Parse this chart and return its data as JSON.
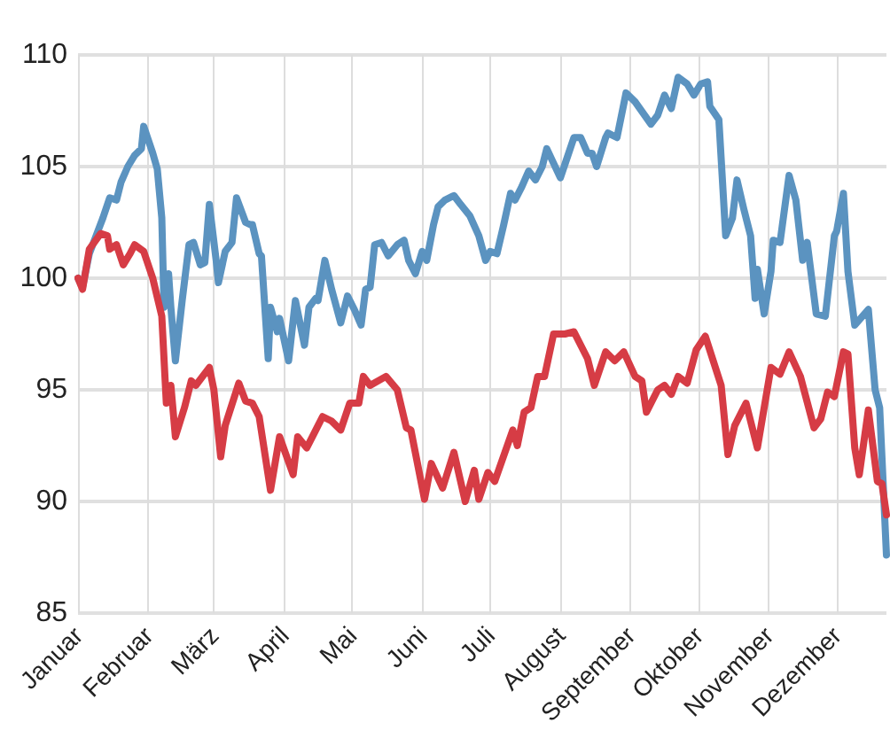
{
  "chart_data": {
    "type": "line",
    "xlim": [
      "--01-01",
      "--12-23"
    ],
    "ylim": [
      85,
      110
    ],
    "xticks": [
      {
        "value": "--01-01",
        "label": "Januar"
      },
      {
        "value": "--02-01",
        "label": "Februar"
      },
      {
        "value": "--03-01",
        "label": "März"
      },
      {
        "value": "--04-01",
        "label": "April"
      },
      {
        "value": "--05-01",
        "label": "Mai"
      },
      {
        "value": "--06-01",
        "label": "Juni"
      },
      {
        "value": "--07-01",
        "label": "Juli"
      },
      {
        "value": "--08-01",
        "label": "August"
      },
      {
        "value": "--09-01",
        "label": "September"
      },
      {
        "value": "--10-01",
        "label": "Oktober"
      },
      {
        "value": "--11-01",
        "label": "November"
      },
      {
        "value": "--12-01",
        "label": "Dezember"
      }
    ],
    "yticks": [
      85,
      90,
      95,
      100,
      105,
      110
    ],
    "grid": true,
    "marker": "none",
    "line_style": "solid",
    "series": [
      {
        "color": "#5b93c0",
        "x": [
          "--01-01",
          "--01-03",
          "--01-06",
          "--01-09",
          "--01-12",
          "--01-15",
          "--01-18",
          "--01-20",
          "--01-23",
          "--01-26",
          "--01-29",
          "--01-30",
          "--02-03",
          "--02-05",
          "--02-07",
          "--02-08",
          "--02-10",
          "--02-11",
          "--02-13",
          "--02-16",
          "--02-19",
          "--02-21",
          "--02-24",
          "--02-26",
          "--02-28",
          "--03-02",
          "--03-03",
          "--03-06",
          "--03-09",
          "--03-11",
          "--03-15",
          "--03-17",
          "--03-18",
          "--03-21",
          "--03-22",
          "--03-25",
          "--03-26",
          "--03-29",
          "--03-30",
          "--04-03",
          "--04-06",
          "--04-10",
          "--04-12",
          "--04-15",
          "--04-16",
          "--04-19",
          "--04-22",
          "--04-26",
          "--04-29",
          "--05-02",
          "--05-05",
          "--05-07",
          "--05-09",
          "--05-11",
          "--05-14",
          "--05-17",
          "--05-21",
          "--05-24",
          "--05-26",
          "--05-29",
          "--06-01",
          "--06-03",
          "--06-06",
          "--06-08",
          "--06-11",
          "--06-15",
          "--06-18",
          "--06-22",
          "--06-26",
          "--06-29",
          "--07-01",
          "--07-04",
          "--07-07",
          "--07-10",
          "--07-12",
          "--07-15",
          "--07-18",
          "--07-21",
          "--07-24",
          "--07-26",
          "--08-01",
          "--08-05",
          "--08-07",
          "--08-10",
          "--08-13",
          "--08-15",
          "--08-17",
          "--08-21",
          "--08-22",
          "--08-26",
          "--08-30",
          "--09-03",
          "--09-10",
          "--09-13",
          "--09-16",
          "--09-19",
          "--09-22",
          "--09-26",
          "--09-29",
          "--10-02",
          "--10-05",
          "--10-06",
          "--10-10",
          "--10-13",
          "--10-16",
          "--10-18",
          "--10-21",
          "--10-24",
          "--10-26",
          "--10-27",
          "--10-30",
          "--11-02",
          "--11-03",
          "--11-06",
          "--11-10",
          "--11-13",
          "--11-16",
          "--11-18",
          "--11-22",
          "--11-26",
          "--11-30",
          "--12-01",
          "--12-04",
          "--12-06",
          "--12-09",
          "--12-15",
          "--12-18",
          "--12-20",
          "--12-23"
        ],
        "values": [
          100.0,
          99.6,
          101.1,
          101.9,
          102.7,
          103.6,
          103.5,
          104.3,
          105.0,
          105.5,
          105.8,
          106.8,
          105.6,
          104.9,
          102.7,
          98.7,
          100.2,
          98.7,
          96.3,
          99.0,
          101.5,
          101.6,
          100.6,
          100.7,
          103.3,
          100.8,
          99.8,
          101.2,
          101.6,
          103.6,
          102.5,
          102.4,
          102.4,
          101.1,
          101.0,
          96.4,
          98.7,
          97.6,
          98.2,
          96.3,
          99.0,
          97.0,
          98.7,
          99.1,
          99.0,
          100.8,
          99.5,
          98.0,
          99.2,
          98.6,
          97.9,
          99.5,
          99.6,
          101.5,
          101.6,
          101.0,
          101.5,
          101.7,
          100.8,
          100.2,
          101.2,
          100.8,
          102.4,
          103.2,
          103.5,
          103.7,
          103.3,
          102.8,
          101.9,
          100.8,
          101.2,
          101.1,
          102.4,
          103.8,
          103.5,
          104.1,
          104.8,
          104.4,
          105.0,
          105.8,
          104.5,
          105.7,
          106.3,
          106.3,
          105.6,
          105.6,
          105.0,
          106.3,
          106.5,
          106.3,
          108.3,
          107.9,
          106.9,
          107.3,
          108.2,
          107.6,
          109.0,
          108.7,
          108.2,
          108.7,
          108.8,
          107.7,
          107.1,
          101.9,
          102.7,
          104.4,
          103.1,
          101.9,
          99.1,
          100.4,
          98.4,
          100.3,
          101.7,
          101.6,
          104.6,
          103.5,
          100.8,
          101.6,
          98.4,
          98.3,
          101.9,
          102.1,
          103.8,
          100.3,
          97.9,
          98.6,
          95.0,
          94.2,
          87.6
        ]
      },
      {
        "color": "#d63c45",
        "x": [
          "--01-01",
          "--01-03",
          "--01-06",
          "--01-11",
          "--01-14",
          "--01-15",
          "--01-18",
          "--01-21",
          "--01-24",
          "--01-26",
          "--01-30",
          "--02-03",
          "--02-07",
          "--02-09",
          "--02-11",
          "--02-13",
          "--02-17",
          "--02-20",
          "--02-22",
          "--02-28",
          "--03-01",
          "--03-04",
          "--03-06",
          "--03-12",
          "--03-15",
          "--03-18",
          "--03-21",
          "--03-26",
          "--03-30",
          "--04-05",
          "--04-07",
          "--04-11",
          "--04-15",
          "--04-18",
          "--04-22",
          "--04-26",
          "--04-30",
          "--05-04",
          "--05-06",
          "--05-09",
          "--05-16",
          "--05-21",
          "--05-25",
          "--05-27",
          "--06-02",
          "--06-05",
          "--06-10",
          "--06-15",
          "--06-20",
          "--06-24",
          "--06-26",
          "--06-30",
          "--07-03",
          "--07-11",
          "--07-13",
          "--07-16",
          "--07-19",
          "--07-22",
          "--07-25",
          "--07-29",
          "--08-03",
          "--08-07",
          "--08-13",
          "--08-16",
          "--08-21",
          "--08-25",
          "--08-29",
          "--09-03",
          "--09-06",
          "--09-08",
          "--09-13",
          "--09-16",
          "--09-19",
          "--09-22",
          "--09-26",
          "--09-30",
          "--10-04",
          "--10-11",
          "--10-14",
          "--10-17",
          "--10-22",
          "--10-27",
          "--11-02",
          "--11-06",
          "--11-10",
          "--11-15",
          "--11-21",
          "--11-24",
          "--11-27",
          "--11-30",
          "--12-04",
          "--12-06",
          "--12-09",
          "--12-11",
          "--12-15",
          "--12-19",
          "--12-21",
          "--12-23"
        ],
        "values": [
          100.0,
          99.5,
          101.3,
          102.0,
          101.9,
          101.3,
          101.5,
          100.6,
          101.1,
          101.5,
          101.2,
          100.0,
          98.3,
          94.4,
          95.2,
          92.9,
          94.2,
          95.4,
          95.2,
          96.0,
          95.0,
          92.0,
          93.4,
          95.3,
          94.5,
          94.4,
          93.8,
          90.5,
          92.9,
          91.2,
          92.9,
          92.4,
          93.2,
          93.8,
          93.6,
          93.2,
          94.4,
          94.4,
          95.6,
          95.2,
          95.6,
          95.0,
          93.3,
          93.2,
          90.1,
          91.7,
          90.6,
          92.2,
          90.0,
          91.4,
          90.1,
          91.3,
          90.9,
          93.2,
          92.5,
          94.0,
          94.2,
          95.6,
          95.6,
          97.5,
          97.5,
          97.6,
          96.4,
          95.2,
          96.7,
          96.3,
          96.7,
          95.6,
          95.4,
          94.0,
          95.0,
          95.2,
          94.8,
          95.6,
          95.3,
          96.8,
          97.4,
          95.2,
          92.1,
          93.4,
          94.4,
          92.4,
          96.0,
          95.7,
          96.7,
          95.6,
          93.3,
          93.7,
          94.9,
          94.7,
          96.7,
          96.6,
          92.4,
          91.2,
          94.1,
          90.9,
          90.8,
          89.4
        ]
      }
    ]
  }
}
